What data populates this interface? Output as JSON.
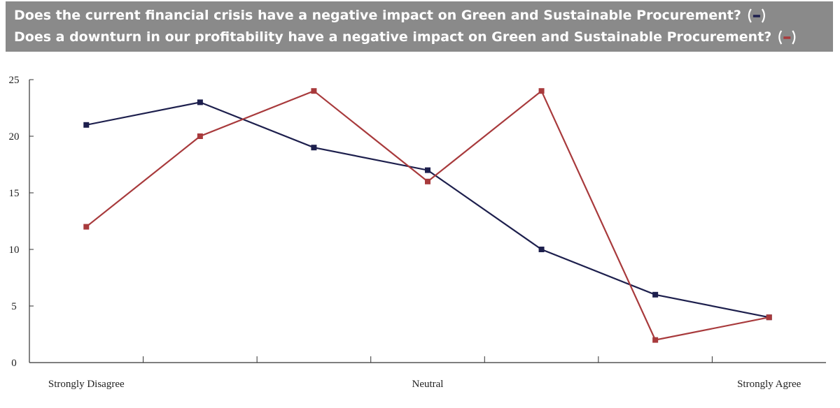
{
  "chart_data": {
    "type": "line",
    "categories": [
      "Strongly Disagree",
      null,
      null,
      "Neutral",
      null,
      null,
      "Strongly Agree"
    ],
    "series": [
      {
        "name": "Does the current financial crisis have a negative impact on Green and Sustainable Procurement?",
        "color": "#1d1f4d",
        "values": [
          21,
          23,
          19,
          17,
          10,
          6,
          4
        ]
      },
      {
        "name": "Does a downturn in our profitability have a negative impact on Green and Sustainable Procurement?",
        "color": "#a83a3c",
        "values": [
          12,
          20,
          24,
          16,
          24,
          2,
          4
        ]
      }
    ],
    "ylim": [
      0,
      25
    ],
    "yticks": [
      0,
      5,
      10,
      15,
      20,
      25
    ],
    "grid": false
  }
}
